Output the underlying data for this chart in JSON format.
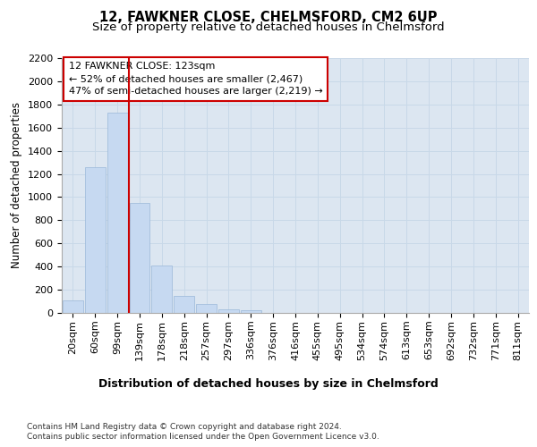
{
  "title1": "12, FAWKNER CLOSE, CHELMSFORD, CM2 6UP",
  "title2": "Size of property relative to detached houses in Chelmsford",
  "xlabel": "Distribution of detached houses by size in Chelmsford",
  "ylabel": "Number of detached properties",
  "footnote1": "Contains HM Land Registry data © Crown copyright and database right 2024.",
  "footnote2": "Contains public sector information licensed under the Open Government Licence v3.0.",
  "categories": [
    "20sqm",
    "60sqm",
    "99sqm",
    "139sqm",
    "178sqm",
    "218sqm",
    "257sqm",
    "297sqm",
    "336sqm",
    "376sqm",
    "416sqm",
    "455sqm",
    "495sqm",
    "534sqm",
    "574sqm",
    "613sqm",
    "653sqm",
    "692sqm",
    "732sqm",
    "771sqm",
    "811sqm"
  ],
  "values": [
    110,
    1260,
    1730,
    950,
    410,
    150,
    75,
    30,
    20,
    0,
    0,
    0,
    0,
    0,
    0,
    0,
    0,
    0,
    0,
    0,
    0
  ],
  "bar_color": "#c6d9f1",
  "bar_edge_color": "#9ab8d8",
  "red_line_x": 2.5,
  "annotation_text": "12 FAWKNER CLOSE: 123sqm\n← 52% of detached houses are smaller (2,467)\n47% of semi-detached houses are larger (2,219) →",
  "annotation_box_color": "#ffffff",
  "annotation_box_edge_color": "#cc0000",
  "ylim": [
    0,
    2200
  ],
  "yticks": [
    0,
    200,
    400,
    600,
    800,
    1000,
    1200,
    1400,
    1600,
    1800,
    2000,
    2200
  ],
  "grid_color": "#c8d8e8",
  "background_color": "#dce6f1",
  "title1_fontsize": 10.5,
  "title2_fontsize": 9.5,
  "xlabel_fontsize": 9,
  "ylabel_fontsize": 8.5,
  "tick_fontsize": 8,
  "annotation_fontsize": 8,
  "footnote_fontsize": 6.5
}
